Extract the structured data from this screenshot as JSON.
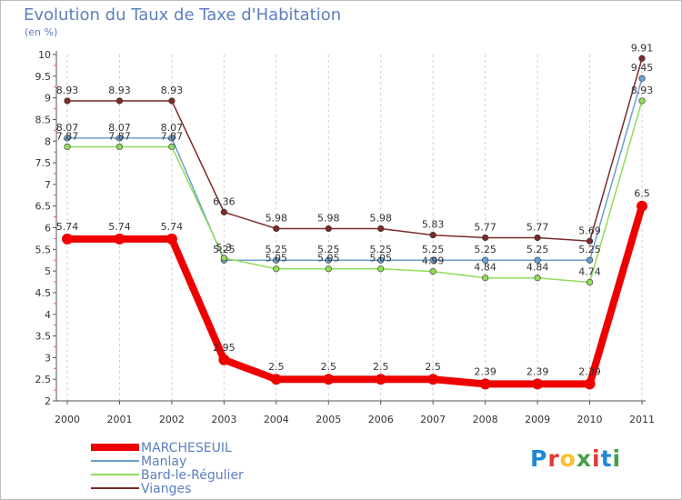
{
  "title": "Evolution du Taux de Taxe d'Habitation",
  "unit": "(en %)",
  "logo": {
    "text": "Proxiti",
    "colors": [
      "#1e88d6",
      "#e53935",
      "#fbc02d",
      "#43a047",
      "#e53935",
      "#1e88d6",
      "#43a047"
    ]
  },
  "chart_data": {
    "type": "line",
    "x": [
      "2000",
      "2001",
      "2002",
      "2003",
      "2004",
      "2005",
      "2006",
      "2007",
      "2008",
      "2009",
      "2010",
      "2011"
    ],
    "ylim": [
      2,
      10
    ],
    "yticks": [
      "2",
      "2.5",
      "3",
      "3.5",
      "4",
      "4.5",
      "5",
      "5.5",
      "6",
      "6.5",
      "7",
      "7.5",
      "8",
      "8.5",
      "9",
      "9.5",
      "10"
    ],
    "grid": "vertical",
    "legend_position": "bottom-left",
    "series": [
      {
        "name": "Vianges",
        "color": "#7b2a2a",
        "values": [
          8.93,
          8.93,
          8.93,
          6.36,
          5.98,
          5.98,
          5.98,
          5.83,
          5.77,
          5.77,
          5.69,
          9.91
        ],
        "labels": [
          "8.93",
          "8.93",
          "8.93",
          "6.36",
          "5.98",
          "5.98",
          "5.98",
          "5.83",
          "5.77",
          "5.77",
          "5.69",
          "9.91"
        ]
      },
      {
        "name": "Manlay",
        "color": "#6a9fd0",
        "values": [
          8.07,
          8.07,
          8.07,
          5.25,
          5.25,
          5.25,
          5.25,
          5.25,
          5.25,
          5.25,
          5.25,
          9.45
        ],
        "labels": [
          "8.07",
          "8.07",
          "8.07",
          "5.25",
          "5.25",
          "5.25",
          "5.25",
          "5.25",
          "5.25",
          "5.25",
          "5.25",
          "9.45"
        ]
      },
      {
        "name": "Bard-le-Régulier",
        "color": "#8fdc5a",
        "values": [
          7.87,
          7.87,
          7.87,
          5.3,
          5.05,
          5.05,
          5.05,
          4.99,
          4.84,
          4.84,
          4.74,
          8.93
        ],
        "labels": [
          "7.87",
          "7.87",
          "7.87",
          "5.3",
          "5.05",
          "5.05",
          "5.05",
          "4.99",
          "4.84",
          "4.84",
          "4.74",
          "8.93"
        ]
      },
      {
        "name": "MARCHESEUIL",
        "color": "#ee0000",
        "values": [
          5.74,
          5.74,
          5.74,
          2.95,
          2.5,
          2.5,
          2.5,
          2.5,
          2.39,
          2.39,
          2.39,
          6.5
        ],
        "labels": [
          "5.74",
          "5.74",
          "5.74",
          "2.95",
          "2.5",
          "2.5",
          "2.5",
          "2.5",
          "2.39",
          "2.39",
          "2.39",
          "6.5"
        ]
      }
    ],
    "legend": [
      {
        "name": "MARCHESEUIL",
        "color": "#ee0000",
        "text_color": "#5b7fc0",
        "thick": true
      },
      {
        "name": "Manlay",
        "color": "#6a9fd0",
        "text_color": "#5b7fc0",
        "thick": false
      },
      {
        "name": "Bard-le-Régulier",
        "color": "#8fdc5a",
        "text_color": "#5b7fc0",
        "thick": false
      },
      {
        "name": "Vianges",
        "color": "#7b2a2a",
        "text_color": "#5b7fc0",
        "thick": false
      }
    ]
  }
}
